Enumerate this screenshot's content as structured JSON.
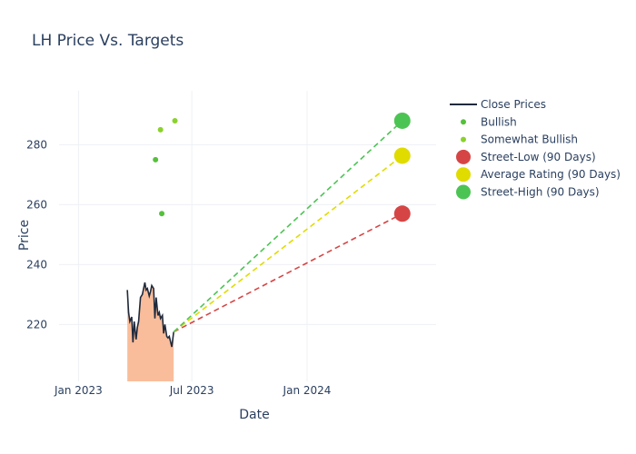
{
  "chart_data": {
    "type": "line",
    "title": "LH Price Vs. Targets",
    "xlabel": "Date",
    "ylabel": "Price",
    "grid": true,
    "legend_position": "right",
    "xlim": [
      "2022-12-01",
      "2024-07-25"
    ],
    "ylim": [
      201,
      298
    ],
    "x_ticks": [
      {
        "date": "2023-01-01",
        "label": "Jan 2023"
      },
      {
        "date": "2023-07-01",
        "label": "Jul 2023"
      },
      {
        "date": "2024-01-01",
        "label": "Jan 2024"
      }
    ],
    "y_ticks": [
      220,
      240,
      260,
      280
    ],
    "series": [
      {
        "name": "Close Prices",
        "type": "area-line",
        "color": "#1f2a3c",
        "fill": "#f9bd9b",
        "points": [
          [
            "2023-03-20",
            231.5
          ],
          [
            "2023-03-22",
            224
          ],
          [
            "2023-03-24",
            221
          ],
          [
            "2023-03-27",
            222.5
          ],
          [
            "2023-03-29",
            214
          ],
          [
            "2023-03-31",
            221
          ],
          [
            "2023-04-03",
            215
          ],
          [
            "2023-04-05",
            219
          ],
          [
            "2023-04-07",
            221
          ],
          [
            "2023-04-10",
            229
          ],
          [
            "2023-04-13",
            230
          ],
          [
            "2023-04-17",
            234
          ],
          [
            "2023-04-19",
            231.5
          ],
          [
            "2023-04-21",
            232
          ],
          [
            "2023-04-24",
            229.5
          ],
          [
            "2023-04-26",
            231
          ],
          [
            "2023-04-28",
            233
          ],
          [
            "2023-05-01",
            232
          ],
          [
            "2023-05-03",
            222
          ],
          [
            "2023-05-05",
            229
          ],
          [
            "2023-05-08",
            223
          ],
          [
            "2023-05-10",
            224
          ],
          [
            "2023-05-12",
            222
          ],
          [
            "2023-05-15",
            223
          ],
          [
            "2023-05-17",
            217
          ],
          [
            "2023-05-19",
            220
          ],
          [
            "2023-05-22",
            216
          ],
          [
            "2023-05-24",
            215.5
          ],
          [
            "2023-05-26",
            216
          ],
          [
            "2023-05-30",
            212.5
          ],
          [
            "2023-06-02",
            217.5
          ]
        ]
      },
      {
        "name": "Bullish",
        "type": "scatter",
        "color": "#55c03b",
        "points": [
          [
            "2023-05-04",
            275
          ],
          [
            "2023-05-14",
            257
          ]
        ]
      },
      {
        "name": "Somewhat Bullish",
        "type": "scatter",
        "color": "#8ad12c",
        "points": [
          [
            "2023-05-12",
            285
          ],
          [
            "2023-06-04",
            288
          ]
        ]
      },
      {
        "name": "Street-Low (90 Days)",
        "type": "target",
        "color": "#d64545",
        "start": [
          "2023-06-02",
          217.5
        ],
        "end": [
          "2024-06-01",
          257
        ]
      },
      {
        "name": "Average Rating (90 Days)",
        "type": "target",
        "color": "#e0dc00",
        "start": [
          "2023-06-02",
          217.5
        ],
        "end": [
          "2024-06-01",
          276.33
        ]
      },
      {
        "name": "Street-High (90 Days)",
        "type": "target",
        "color": "#4cc453",
        "start": [
          "2023-06-02",
          217.5
        ],
        "end": [
          "2024-06-01",
          288
        ]
      }
    ]
  }
}
